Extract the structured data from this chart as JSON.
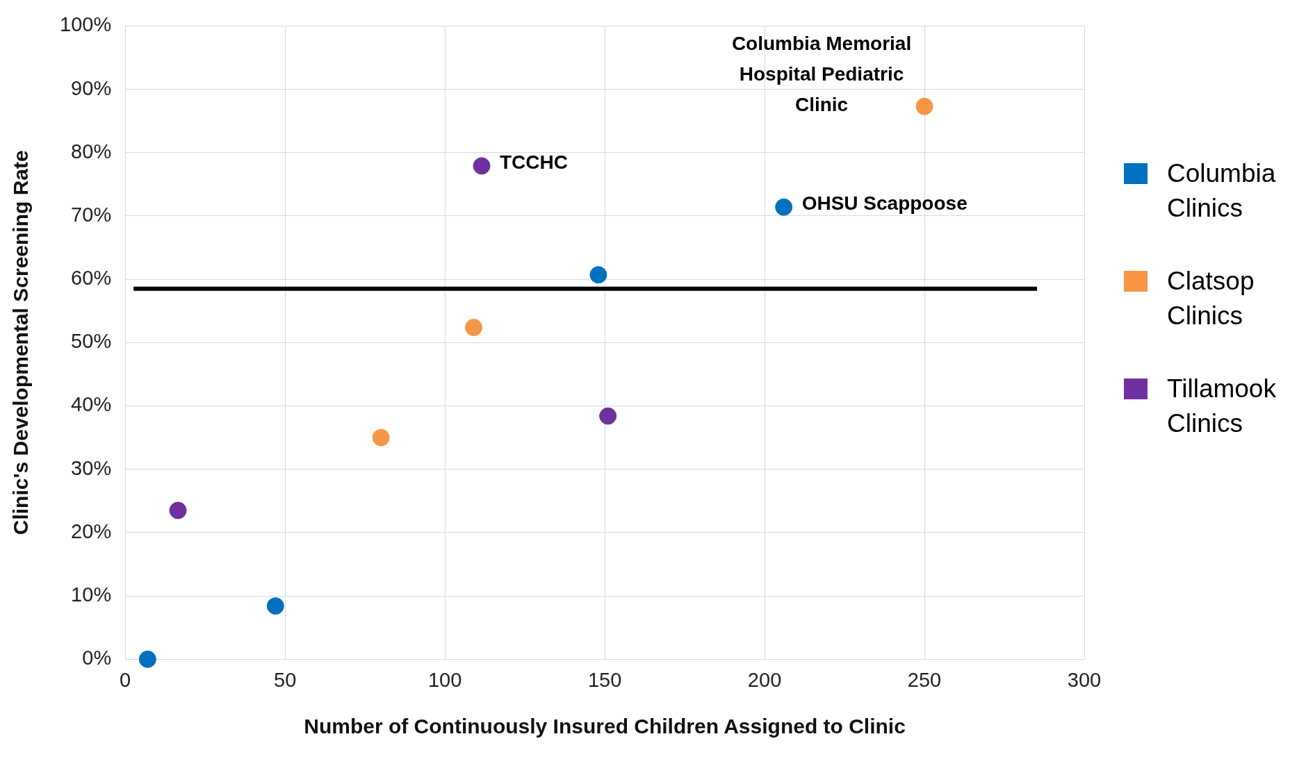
{
  "chart_data": {
    "type": "scatter",
    "xlabel": "Number of Continuously Insured Children Assigned to Clinic",
    "ylabel": "Clinic's Developmental Screening Rate",
    "series": [
      {
        "name": "Columbia Clinics",
        "color": "#0070c0",
        "x": [
          7,
          47,
          148,
          206
        ],
        "values": [
          0,
          8.4,
          60.7,
          71.4
        ]
      },
      {
        "name": "Clatsop Clinics",
        "color": "#f79646",
        "x": [
          80,
          109,
          250
        ],
        "values": [
          35,
          52.4,
          87.3
        ]
      },
      {
        "name": "Tillamook Clinics",
        "color": "#7030a0",
        "x": [
          16.5,
          111.5,
          151
        ],
        "values": [
          23.5,
          77.9,
          38.4
        ]
      }
    ],
    "xlim": [
      0,
      300
    ],
    "xticks": [
      0,
      50,
      100,
      150,
      200,
      250,
      300
    ],
    "ylim": [
      0,
      100
    ],
    "yticks": [
      {
        "value": 0,
        "label": "0%"
      },
      {
        "value": 10,
        "label": "10%"
      },
      {
        "value": 20,
        "label": "20%"
      },
      {
        "value": 30,
        "label": "30%"
      },
      {
        "value": 40,
        "label": "40%"
      },
      {
        "value": 50,
        "label": "50%"
      },
      {
        "value": 60,
        "label": "60%"
      },
      {
        "value": 70,
        "label": "70%"
      },
      {
        "value": 80,
        "label": "80%"
      },
      {
        "value": 90,
        "label": "90%"
      },
      {
        "value": 100,
        "label": "100%"
      }
    ],
    "ref_lines": [
      {
        "axis": "y",
        "value": 58.5,
        "color": "#000000"
      }
    ],
    "annotations": [
      {
        "text": "TCCHC",
        "x": 111.5,
        "y": 77.9
      },
      {
        "text": "OHSU Scappoose",
        "x": 206,
        "y": 71.4
      },
      {
        "text": "Columbia Memorial\nHospital Pediatric\nClinic",
        "x": 250,
        "y": 87.3
      }
    ],
    "grid": true,
    "legend": "right",
    "marker": "circle"
  }
}
